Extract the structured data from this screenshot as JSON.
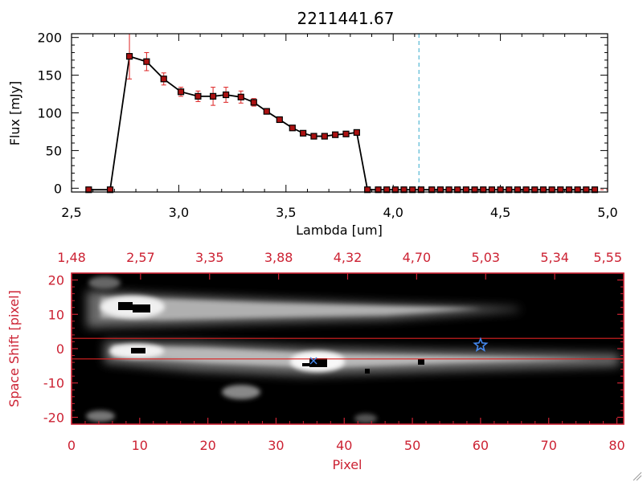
{
  "chart_data": [
    {
      "type": "line",
      "title": "2211441.67",
      "xlabel": "Lambda [um]",
      "ylabel": "Flux [mJy]",
      "xlim": [
        2.5,
        5.0
      ],
      "ylim": [
        -5,
        205
      ],
      "xticks": [
        "2.5",
        "3.0",
        "3.5",
        "4.0",
        "4.5",
        "5.0"
      ],
      "yticks": [
        "0",
        "50",
        "100",
        "150",
        "200"
      ],
      "reference_line_x": 4.12,
      "series": [
        {
          "x": [
            2.58,
            2.68,
            2.77,
            2.85,
            2.93,
            3.01,
            3.09,
            3.16,
            3.22,
            3.29,
            3.35,
            3.41,
            3.47,
            3.53,
            3.58,
            3.63,
            3.68,
            3.73,
            3.78,
            3.83,
            3.88,
            3.93,
            3.97,
            4.01,
            4.05,
            4.09,
            4.13,
            4.18,
            4.22,
            4.26,
            4.3,
            4.34,
            4.38,
            4.42,
            4.46,
            4.5,
            4.54,
            4.58,
            4.62,
            4.66,
            4.7,
            4.74,
            4.78,
            4.82,
            4.86,
            4.9,
            4.94
          ],
          "y": [
            -2,
            -2,
            175,
            168,
            145,
            128,
            122,
            122,
            124,
            121,
            114,
            102,
            91,
            80,
            73,
            69,
            69,
            71,
            72,
            74,
            -2,
            -2,
            -2,
            -2,
            -2,
            -2,
            -2,
            -2,
            -2,
            -2,
            -2,
            -2,
            -2,
            -2,
            -2,
            -2,
            -2,
            -2,
            -2,
            -2,
            -2,
            -2,
            -2,
            -2,
            -2,
            -2,
            -2
          ],
          "err": [
            0,
            0,
            30,
            12,
            8,
            6,
            7,
            12,
            10,
            8,
            5,
            3,
            3,
            2,
            2,
            2,
            2,
            2,
            2,
            2,
            0,
            0,
            0,
            0,
            0,
            0,
            0,
            0,
            0,
            0,
            0,
            0,
            0,
            0,
            0,
            0,
            0,
            0,
            0,
            0,
            0,
            0,
            0,
            0,
            0,
            0,
            0
          ]
        }
      ]
    },
    {
      "type": "heatmap",
      "xlabel": "Pixel",
      "ylabel": "Space Shift [pixel]",
      "xlim": [
        0,
        81
      ],
      "ylim": [
        -22,
        22
      ],
      "xticks": [
        "0",
        "10",
        "20",
        "30",
        "40",
        "50",
        "60",
        "70",
        "80"
      ],
      "yticks": [
        "20",
        "10",
        "0",
        "-10",
        "-20"
      ],
      "top_axis_ticks": [
        "1.48",
        "2.57",
        "3.35",
        "3.88",
        "4.32",
        "4.70",
        "5.03",
        "5.34",
        "5.55"
      ],
      "aperture_lines_y": [
        3,
        -3
      ],
      "marker": {
        "x": 60,
        "y": 1,
        "symbol": "star",
        "color": "#4488ee"
      },
      "colors": {
        "axes": "#cc2233",
        "lines": "#dd2222"
      }
    }
  ]
}
